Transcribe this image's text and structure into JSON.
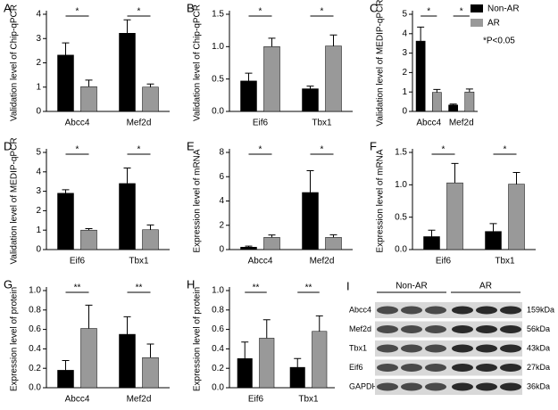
{
  "chart_data": [
    {
      "type": "bar",
      "letter": "A",
      "ylabel": "Validation level of Chip-qPCR",
      "categories": [
        "Abcc4",
        "Mef2d"
      ],
      "significance": [
        "*",
        "*"
      ],
      "series": [
        {
          "color": "#000000",
          "values": [
            2.32,
            3.22
          ],
          "errors": [
            0.5,
            0.55
          ]
        },
        {
          "color": "#999999",
          "values": [
            1.02,
            1.0
          ],
          "errors": [
            0.27,
            0.13
          ]
        }
      ],
      "ylim": [
        0,
        4
      ],
      "yticks": [
        0,
        1,
        2,
        3,
        4
      ]
    },
    {
      "type": "bar",
      "letter": "B",
      "ylabel": "Validation level of Chip-qPCR",
      "categories": [
        "Eif6",
        "Tbx1"
      ],
      "significance": [
        "*",
        "*"
      ],
      "series": [
        {
          "color": "#000000",
          "values": [
            0.47,
            0.35
          ],
          "errors": [
            0.12,
            0.04
          ]
        },
        {
          "color": "#999999",
          "values": [
            1.0,
            1.01
          ],
          "errors": [
            0.13,
            0.17
          ]
        }
      ],
      "ylim": [
        0,
        1.5
      ],
      "yticks": [
        {
          "value": 0,
          "label": "0.0"
        },
        0.5,
        {
          "value": 1,
          "label": "1.0"
        },
        1.5
      ]
    },
    {
      "type": "bar",
      "letter": "C",
      "ylabel": "Validation level of MEDIP-qPCR",
      "categories": [
        "Abcc4",
        "Mef2d"
      ],
      "significance": [
        "*",
        "*"
      ],
      "series": [
        {
          "color": "#000000",
          "values": [
            3.62,
            0.33
          ],
          "errors": [
            0.72,
            0.05
          ]
        },
        {
          "color": "#999999",
          "values": [
            0.98,
            1.0
          ],
          "errors": [
            0.15,
            0.15
          ]
        }
      ],
      "ylim": [
        0,
        5
      ],
      "yticks": [
        0,
        1,
        2,
        3,
        4,
        5
      ]
    },
    {
      "type": "bar",
      "letter": "D",
      "ylabel": "Validation level of MEDIP-qPCR",
      "categories": [
        "Eif6",
        "Tbx1"
      ],
      "significance": [
        "*",
        "*"
      ],
      "series": [
        {
          "color": "#000000",
          "values": [
            2.9,
            3.4
          ],
          "errors": [
            0.18,
            0.8
          ]
        },
        {
          "color": "#999999",
          "values": [
            1.0,
            1.02
          ],
          "errors": [
            0.08,
            0.25
          ]
        }
      ],
      "ylim": [
        0,
        5
      ],
      "yticks": [
        0,
        1,
        2,
        3,
        4,
        5
      ]
    },
    {
      "type": "bar",
      "letter": "E",
      "ylabel": "Expression level of mRNA",
      "categories": [
        "Abcc4",
        "Mef2d"
      ],
      "significance": [
        "*",
        "*"
      ],
      "series": [
        {
          "color": "#000000",
          "values": [
            0.2,
            4.7
          ],
          "errors": [
            0.08,
            1.8
          ]
        },
        {
          "color": "#999999",
          "values": [
            1.0,
            1.0
          ],
          "errors": [
            0.2,
            0.22
          ]
        }
      ],
      "ylim": [
        0,
        8
      ],
      "yticks": [
        0,
        2,
        4,
        6,
        8
      ]
    },
    {
      "type": "bar",
      "letter": "F",
      "ylabel": "Expression level of mRNA",
      "categories": [
        "Eif6",
        "Tbx1"
      ],
      "significance": [
        "*",
        "*"
      ],
      "series": [
        {
          "color": "#000000",
          "values": [
            0.2,
            0.28
          ],
          "errors": [
            0.1,
            0.12
          ]
        },
        {
          "color": "#999999",
          "values": [
            1.03,
            1.01
          ],
          "errors": [
            0.3,
            0.18
          ]
        }
      ],
      "ylim": [
        0,
        1.5
      ],
      "yticks": [
        {
          "value": 0,
          "label": "0.0"
        },
        0.5,
        {
          "value": 1,
          "label": "1.0"
        },
        1.5
      ]
    },
    {
      "type": "bar",
      "letter": "G",
      "ylabel": "Expression level of protein",
      "categories": [
        "Abcc4",
        "Mef2d"
      ],
      "significance": [
        "**",
        "**"
      ],
      "series": [
        {
          "color": "#000000",
          "values": [
            0.18,
            0.55
          ],
          "errors": [
            0.1,
            0.18
          ]
        },
        {
          "color": "#999999",
          "values": [
            0.61,
            0.31
          ],
          "errors": [
            0.24,
            0.14
          ]
        }
      ],
      "ylim": [
        0,
        1
      ],
      "yticks": [
        {
          "value": 0,
          "label": "0.0"
        },
        0.2,
        0.4,
        0.6,
        0.8,
        {
          "value": 1,
          "label": "1.0"
        }
      ]
    },
    {
      "type": "bar",
      "letter": "H",
      "ylabel": "Expression level of protein",
      "categories": [
        "Eif6",
        "Tbx1"
      ],
      "significance": [
        "**",
        "**"
      ],
      "series": [
        {
          "color": "#000000",
          "values": [
            0.3,
            0.21
          ],
          "errors": [
            0.17,
            0.09
          ]
        },
        {
          "color": "#999999",
          "values": [
            0.51,
            0.58
          ],
          "errors": [
            0.19,
            0.16
          ]
        }
      ],
      "ylim": [
        0,
        1
      ],
      "yticks": [
        {
          "value": 0,
          "label": "0.0"
        },
        0.2,
        0.4,
        0.6,
        0.8,
        {
          "value": 1,
          "label": "1.0"
        }
      ]
    }
  ],
  "legend": {
    "items": [
      {
        "name": "Non-AR",
        "color": "#000000"
      },
      {
        "name": "AR",
        "color": "#999999"
      }
    ],
    "note": "*P<0.05"
  },
  "blot": {
    "letter": "I",
    "groups": [
      "Non-AR",
      "AR"
    ],
    "rows": [
      {
        "label": "Abcc4",
        "size": "159kDa"
      },
      {
        "label": "Mef2d",
        "size": "56kDa"
      },
      {
        "label": "Tbx1",
        "size": "43kDa"
      },
      {
        "label": "Eif6",
        "size": "27kDa"
      },
      {
        "label": "GAPDH",
        "size": "36kDa"
      }
    ]
  }
}
